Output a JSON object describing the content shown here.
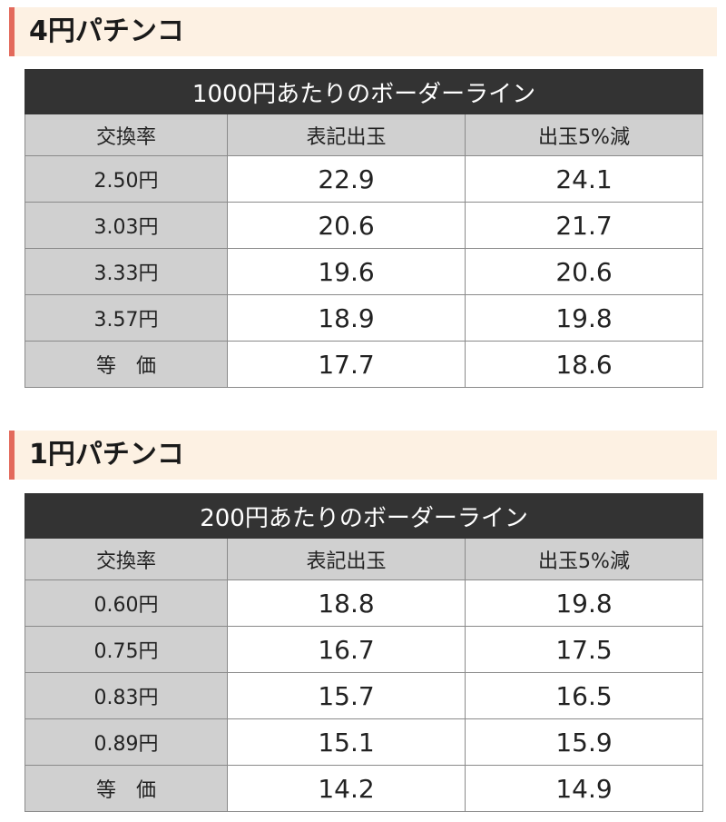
{
  "sections": [
    {
      "heading": "4円パチンコ",
      "caption": "1000円あたりのボーダーライン",
      "columns": [
        "交換率",
        "表記出玉",
        "出玉5%減"
      ],
      "rows": [
        [
          "2.50円",
          "22.9",
          "24.1"
        ],
        [
          "3.03円",
          "20.6",
          "21.7"
        ],
        [
          "3.33円",
          "19.6",
          "20.6"
        ],
        [
          "3.57円",
          "18.9",
          "19.8"
        ],
        [
          "等　価",
          "17.7",
          "18.6"
        ]
      ]
    },
    {
      "heading": "1円パチンコ",
      "caption": "200円あたりのボーダーライン",
      "columns": [
        "交換率",
        "表記出玉",
        "出玉5%減"
      ],
      "rows": [
        [
          "0.60円",
          "18.8",
          "19.8"
        ],
        [
          "0.75円",
          "16.7",
          "17.5"
        ],
        [
          "0.83円",
          "15.7",
          "16.5"
        ],
        [
          "0.89円",
          "15.1",
          "15.9"
        ],
        [
          "等　価",
          "14.2",
          "14.9"
        ]
      ]
    }
  ],
  "colors": {
    "heading_accent": "#e36a5c",
    "heading_background": "#fdf1e3",
    "caption_background": "#333333",
    "header_background": "#d0d0d0"
  }
}
